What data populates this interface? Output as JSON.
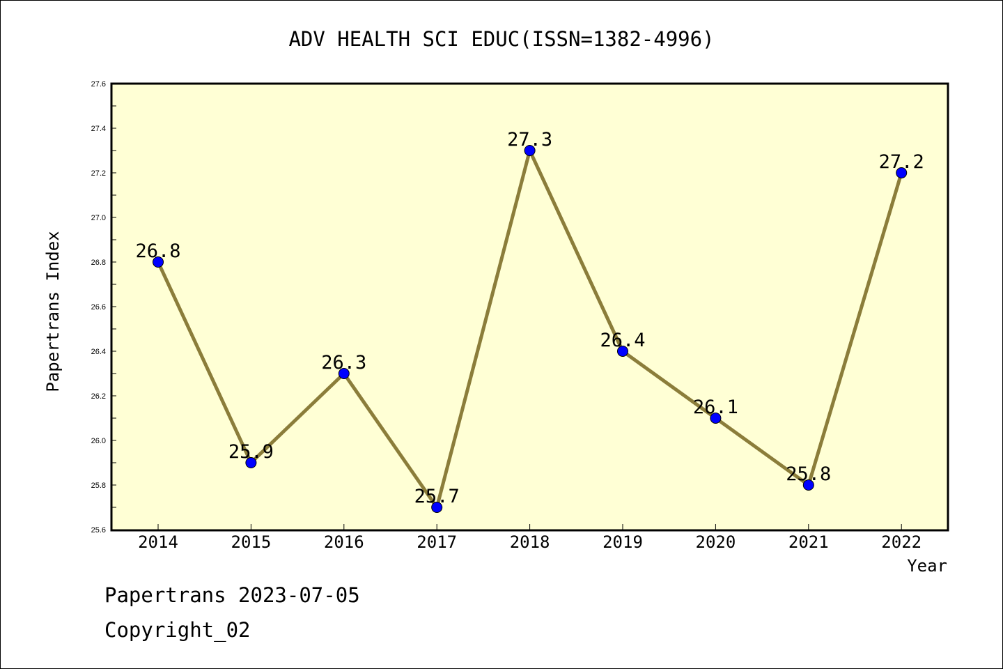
{
  "chart_data": {
    "type": "line",
    "title": "ADV HEALTH SCI EDUC(ISSN=1382-4996)",
    "xlabel": "Year",
    "ylabel": "Papertrans Index",
    "categories": [
      "2014",
      "2015",
      "2016",
      "2017",
      "2018",
      "2019",
      "2020",
      "2021",
      "2022"
    ],
    "values": [
      26.8,
      25.9,
      26.3,
      25.7,
      27.3,
      26.4,
      26.1,
      25.8,
      27.2
    ],
    "data_labels": [
      "26.8",
      "25.9",
      "26.3",
      "25.7",
      "27.3",
      "26.4",
      "26.1",
      "25.8",
      "27.2"
    ],
    "ylim": [
      25.6,
      27.6
    ],
    "yticks": [
      "25.6",
      "25.8",
      "26.0",
      "26.2",
      "26.4",
      "26.6",
      "26.8",
      "27.0",
      "27.2",
      "27.4",
      "27.6"
    ],
    "grid": false,
    "colors": {
      "plot_background": "#ffffd5",
      "line": "#8b7d3a",
      "marker": "#0000ff"
    }
  },
  "footer": {
    "line1": "Papertrans 2023-07-05",
    "line2": "Copyright_02"
  }
}
